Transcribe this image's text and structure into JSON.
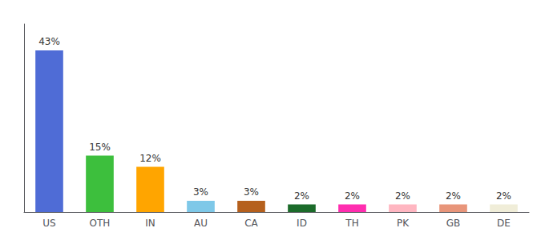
{
  "chart_data": {
    "type": "bar",
    "categories": [
      "US",
      "OTH",
      "IN",
      "AU",
      "CA",
      "ID",
      "TH",
      "PK",
      "GB",
      "DE"
    ],
    "values": [
      43,
      15,
      12,
      3,
      3,
      2,
      2,
      2,
      2,
      2
    ],
    "value_labels": [
      "43%",
      "15%",
      "12%",
      "3%",
      "3%",
      "2%",
      "2%",
      "2%",
      "2%",
      "2%"
    ],
    "colors": [
      "#4F6CD6",
      "#3DBF3D",
      "#FFA500",
      "#7EC8E8",
      "#B5601D",
      "#1B6B2A",
      "#FF2DAF",
      "#FFB6C1",
      "#E8957A",
      "#F0EDD8"
    ],
    "ylim": [
      0,
      50
    ],
    "grid": false,
    "data_labels": true,
    "tick_labels": "x"
  }
}
